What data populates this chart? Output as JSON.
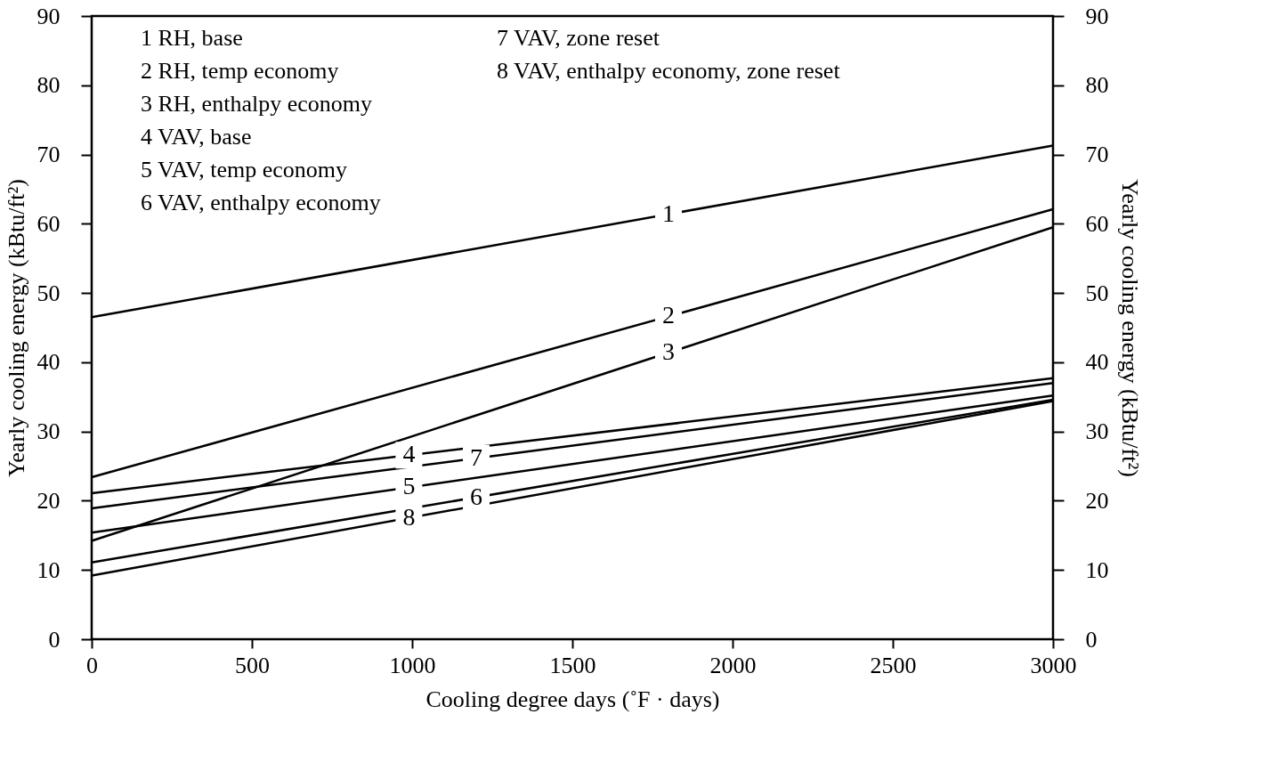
{
  "chart_data": {
    "type": "line",
    "xlabel": "Cooling degree days (˚F · days)",
    "ylabel": "Yearly cooling energy (kBtu/ft²)",
    "y2label": "Yearly cooling energy (kBtu/ft²)",
    "x": [
      0,
      3000
    ],
    "xlim": [
      0,
      3000
    ],
    "xticks": [
      0,
      500,
      1000,
      1500,
      2000,
      2500,
      3000
    ],
    "ylim": [
      0,
      90
    ],
    "yticks": [
      0,
      10,
      20,
      30,
      40,
      50,
      60,
      70,
      80,
      90
    ],
    "y2lim": [
      0,
      90
    ],
    "y2ticks": [
      0,
      10,
      20,
      30,
      40,
      50,
      60,
      70,
      80,
      90
    ],
    "marker": "none",
    "line_style": "solid",
    "series": [
      {
        "name": "1",
        "color": "#000000",
        "values": [
          46.5,
          71.3
        ]
      },
      {
        "name": "2",
        "color": "#000000",
        "values": [
          23.4,
          62.1
        ]
      },
      {
        "name": "3",
        "color": "#000000",
        "values": [
          14.2,
          59.5
        ]
      },
      {
        "name": "4",
        "color": "#000000",
        "values": [
          21.1,
          37.7
        ]
      },
      {
        "name": "5",
        "color": "#000000",
        "values": [
          15.4,
          35.2
        ]
      },
      {
        "name": "6",
        "color": "#000000",
        "values": [
          11.1,
          34.6
        ]
      },
      {
        "name": "7",
        "color": "#000000",
        "values": [
          18.9,
          37.0
        ]
      },
      {
        "name": "8",
        "color": "#000000",
        "values": [
          9.2,
          34.4
        ]
      }
    ],
    "annotations": [
      "1  RH, base",
      "2  RH, temp economy",
      "3  RH, enthalpy economy",
      "4  VAV, base",
      "5  VAV, temp economy",
      "6  VAV, enthalpy economy",
      "7  VAV, zone reset",
      "8  VAV, enthalpy economy, zone reset"
    ]
  }
}
